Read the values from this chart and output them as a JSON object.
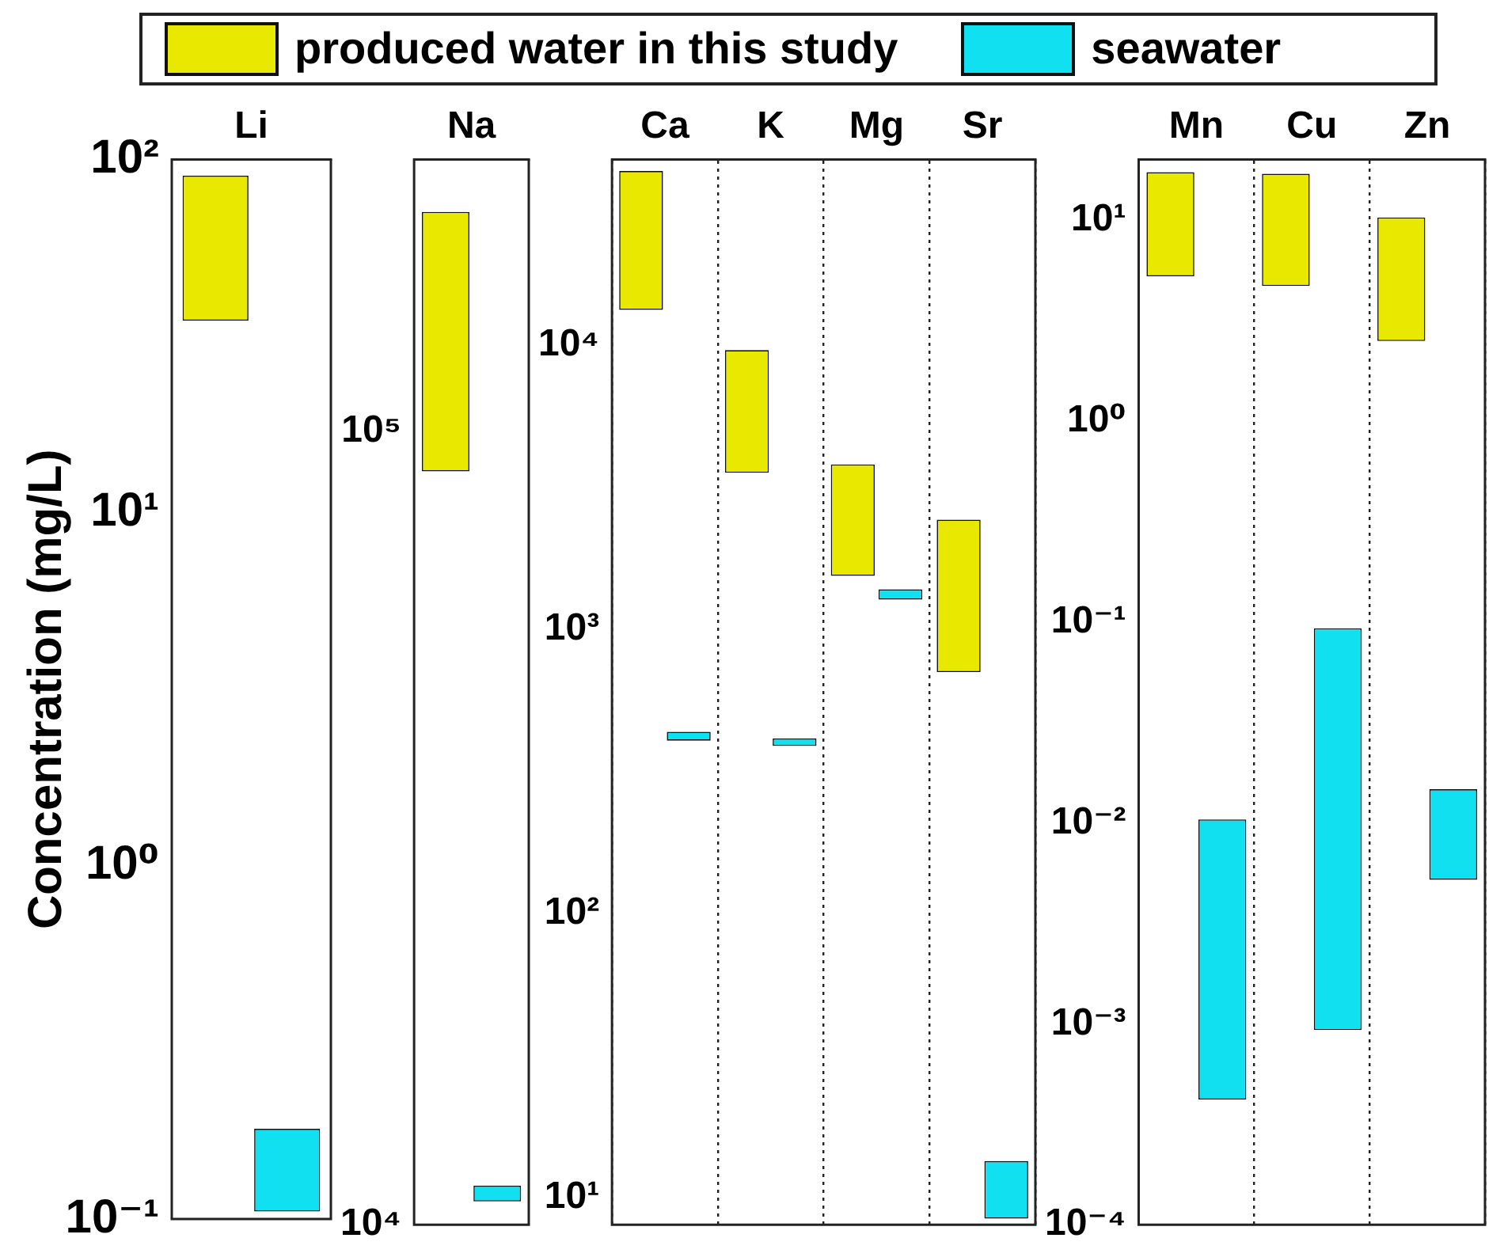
{
  "chart_data": [
    {
      "type": "bar",
      "ylabel": "Concentration (mg/L)",
      "legend": "top",
      "categories": [
        "Li"
      ],
      "log": true,
      "ylim": [
        0.1,
        100
      ],
      "yticks": [
        {
          "value": 0.1,
          "label": "10⁻¹"
        },
        {
          "value": 1,
          "label": "10⁰"
        },
        {
          "value": 10,
          "label": "10¹"
        },
        {
          "value": 100,
          "label": "10²"
        }
      ],
      "series": [
        {
          "name": "produced water in this study",
          "color": "#e8e800",
          "base": [
            35
          ],
          "values": [
            55
          ]
        },
        {
          "name": "seawater",
          "color": "#10e0f0",
          "base": [
            0.105
          ],
          "values": [
            0.075
          ]
        }
      ]
    },
    {
      "type": "bar",
      "categories": [
        "Na"
      ],
      "log": true,
      "ylim": [
        10000,
        220000
      ],
      "yticks": [
        {
          "value": 10000,
          "label": "10⁴"
        },
        {
          "value": 100000,
          "label": "10⁵"
        }
      ],
      "series": [
        {
          "color": "#e8e800",
          "base": [
            89000
          ],
          "values": [
            100000
          ]
        },
        {
          "color": "#10e0f0",
          "base": [
            10700
          ],
          "values": [
            500
          ]
        }
      ]
    },
    {
      "type": "bar",
      "categories": [
        "Ca",
        "K",
        "Mg",
        "Sr"
      ],
      "log": true,
      "grid": "x",
      "ylim": [
        8,
        45000
      ],
      "yticks": [
        {
          "value": 10,
          "label": "10¹"
        },
        {
          "value": 100,
          "label": "10²"
        },
        {
          "value": 1000,
          "label": "10³"
        },
        {
          "value": 10000,
          "label": "10⁴"
        }
      ],
      "series": [
        {
          "color": "#e8e800",
          "base": [
            13300,
            3550,
            1540,
            706
          ],
          "values": [
            27700,
            6050,
            2260,
            1724
          ]
        },
        {
          "color": "#10e0f0",
          "base": [
            405,
            388,
            1270,
            8.4
          ],
          "values": [
            30,
            24,
            110,
            5
          ]
        }
      ]
    },
    {
      "type": "bar",
      "categories": [
        "Mn",
        "Cu",
        "Zn"
      ],
      "log": true,
      "grid": "x",
      "ylim": [
        0.0001,
        20
      ],
      "yticks": [
        {
          "value": 0.0001,
          "label": "10⁻⁴"
        },
        {
          "value": 0.001,
          "label": "10⁻³"
        },
        {
          "value": 0.01,
          "label": "10⁻²"
        },
        {
          "value": 0.1,
          "label": "10⁻¹"
        },
        {
          "value": 1,
          "label": "10⁰"
        },
        {
          "value": 10,
          "label": "10¹"
        }
      ],
      "series": [
        {
          "color": "#e8e800",
          "base": [
            5.25,
            4.7,
            2.5
          ],
          "values": [
            12.05,
            12.3,
            7.8
          ]
        },
        {
          "color": "#10e0f0",
          "base": [
            0.00042,
            0.00093,
            0.0052
          ],
          "values": [
            0.00998,
            0.09207,
            0.0095
          ]
        }
      ]
    }
  ]
}
